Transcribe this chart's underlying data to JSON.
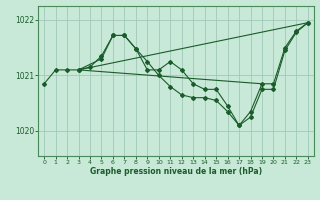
{
  "background_color": "#c8e8d8",
  "grid_color": "#a0c8b8",
  "line_color": "#1a5c2a",
  "spine_color": "#4a8a5a",
  "title": "Graphe pression niveau de la mer (hPa)",
  "xlim": [
    -0.5,
    23.5
  ],
  "ylim": [
    1019.55,
    1022.25
  ],
  "yticks": [
    1020,
    1021,
    1022
  ],
  "xticks": [
    0,
    1,
    2,
    3,
    4,
    5,
    6,
    7,
    8,
    9,
    10,
    11,
    12,
    13,
    14,
    15,
    16,
    17,
    18,
    19,
    20,
    21,
    22,
    23
  ],
  "series": [
    {
      "x": [
        0,
        1,
        2,
        3,
        4,
        5,
        6,
        7,
        8,
        9,
        10,
        11,
        12,
        13,
        14,
        15,
        16,
        17,
        18,
        19,
        20,
        21,
        22,
        23
      ],
      "y": [
        1020.85,
        1021.1,
        1021.1,
        1021.1,
        1021.15,
        1021.35,
        1021.72,
        1021.72,
        1021.48,
        1021.1,
        1021.1,
        1021.25,
        1021.1,
        1020.85,
        1020.75,
        1020.75,
        1020.45,
        1020.1,
        1020.35,
        1020.85,
        1020.85,
        1021.5,
        1021.8,
        1021.95
      ],
      "marker": true
    },
    {
      "x": [
        3,
        5,
        6,
        7,
        8,
        9,
        10,
        11,
        12,
        13,
        14,
        15,
        16,
        17,
        18,
        19,
        20,
        21,
        22,
        23
      ],
      "y": [
        1021.1,
        1021.3,
        1021.72,
        1021.72,
        1021.48,
        1021.25,
        1021.0,
        1020.8,
        1020.65,
        1020.6,
        1020.6,
        1020.55,
        1020.35,
        1020.1,
        1020.25,
        1020.75,
        1020.75,
        1021.45,
        1021.78,
        1021.95
      ],
      "marker": true
    },
    {
      "x": [
        3,
        23
      ],
      "y": [
        1021.1,
        1021.95
      ],
      "marker": false
    },
    {
      "x": [
        3,
        19
      ],
      "y": [
        1021.1,
        1020.85
      ],
      "marker": false
    }
  ]
}
